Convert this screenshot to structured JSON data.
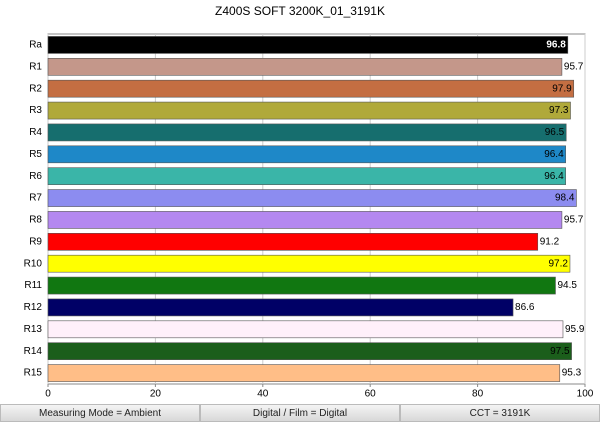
{
  "chart_data": {
    "type": "barh",
    "title": "Z400S SOFT 3200K_01_3191K",
    "categories": [
      "Ra",
      "R1",
      "R2",
      "R3",
      "R4",
      "R5",
      "R6",
      "R7",
      "R8",
      "R9",
      "R10",
      "R11",
      "R12",
      "R13",
      "R14",
      "R15"
    ],
    "values": [
      96.8,
      95.7,
      97.9,
      97.3,
      96.5,
      96.4,
      96.4,
      98.4,
      95.7,
      91.2,
      97.2,
      94.5,
      86.6,
      95.9,
      97.5,
      95.3
    ],
    "colors": [
      "#000000",
      "#c4978a",
      "#c46e42",
      "#b0a93a",
      "#166e6e",
      "#1e88c8",
      "#3ab5a8",
      "#8c8cf0",
      "#b488f0",
      "#ff0000",
      "#ffff00",
      "#117711",
      "#000066",
      "#fff0fa",
      "#1b5e1b",
      "#ffbe87"
    ],
    "xlim": [
      0,
      100
    ],
    "xticks": [
      0,
      20,
      40,
      60,
      80,
      100
    ],
    "grid": true,
    "annotations": [
      "Measuring Mode = Ambient",
      "Digital / Film = Digital",
      "CCT = 3191K"
    ]
  }
}
